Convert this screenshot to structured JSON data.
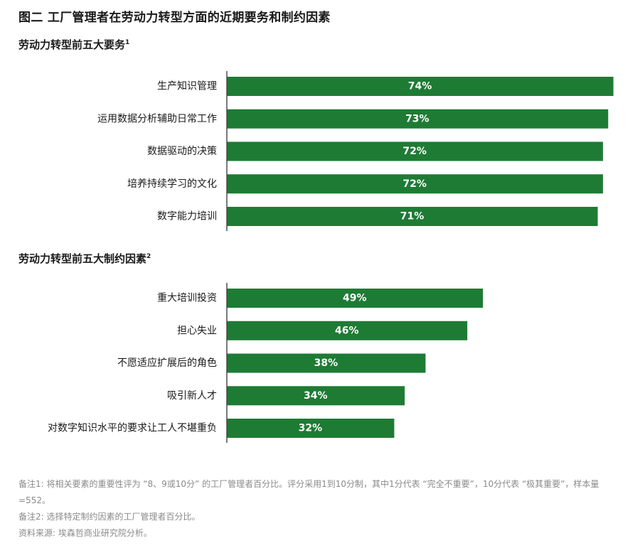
{
  "figure_title": "图二 工厂管理者在劳动力转型方面的近期要务和制约因素",
  "chart_data": [
    {
      "type": "bar",
      "orientation": "horizontal",
      "title": "劳动力转型前五大要务",
      "title_note": "1",
      "categories": [
        "生产知识管理",
        "运用数据分析辅助日常工作",
        "数据驱动的决策",
        "培养持续学习的文化",
        "数字能力培训"
      ],
      "values": [
        74,
        73,
        72,
        72,
        71
      ],
      "value_labels": [
        "74%",
        "73%",
        "72%",
        "72%",
        "71%"
      ],
      "xlim": [
        0,
        74
      ],
      "bar_color": "#1e7b34"
    },
    {
      "type": "bar",
      "orientation": "horizontal",
      "title": "劳动力转型前五大制约因素",
      "title_note": "2",
      "categories": [
        "重大培训投资",
        "担心失业",
        "不愿适应扩展后的角色",
        "吸引新人才",
        "对数字知识水平的要求让工人不堪重负"
      ],
      "values": [
        49,
        46,
        38,
        34,
        32
      ],
      "value_labels": [
        "49%",
        "46%",
        "38%",
        "34%",
        "32%"
      ],
      "xlim": [
        0,
        74
      ],
      "bar_color": "#1e7b34"
    }
  ],
  "notes": {
    "note1": "备注1: 将相关要素的重要性评为 “8、9或10分” 的工厂管理者百分比。评分采用1到10分制，其中1分代表 “完全不重要”，10分代表 “极其重要”，样本量=552。",
    "note2": "备注2: 选择特定制约因素的工厂管理者百分比。",
    "source": "资料来源: 埃森哲商业研究院分析。"
  }
}
